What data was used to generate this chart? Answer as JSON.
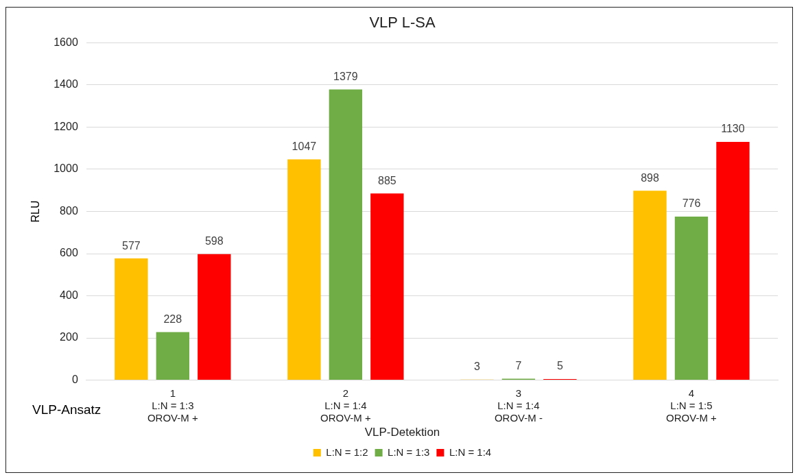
{
  "chart_data": {
    "type": "bar",
    "title": "VLP L-SA",
    "categories": [
      "1\nL:N = 1:3\nOROV-M +",
      "2\nL:N = 1:4\nOROV-M +",
      "3\nL:N = 1:4\nOROV-M -",
      "4\nL:N = 1:5\nOROV-M +"
    ],
    "xlabel": "VLP-Ansatz",
    "ylabel": "RLU",
    "legend_title": "VLP-Detektion",
    "series": [
      {
        "name": "L:N = 1:2",
        "color": "#ffc000",
        "values": [
          577,
          1047,
          3,
          898
        ]
      },
      {
        "name": "L:N = 1:3",
        "color": "#70ad47",
        "values": [
          228,
          1379,
          7,
          776
        ]
      },
      {
        "name": "L:N = 1:4",
        "color": "#ff0000",
        "values": [
          598,
          885,
          5,
          1130
        ]
      }
    ],
    "ylim": [
      0,
      1600
    ],
    "yticks": [
      0,
      200,
      400,
      600,
      800,
      1000,
      1200,
      1400,
      1600
    ],
    "grid": "y",
    "legend": "bottom",
    "data_labels": true
  }
}
